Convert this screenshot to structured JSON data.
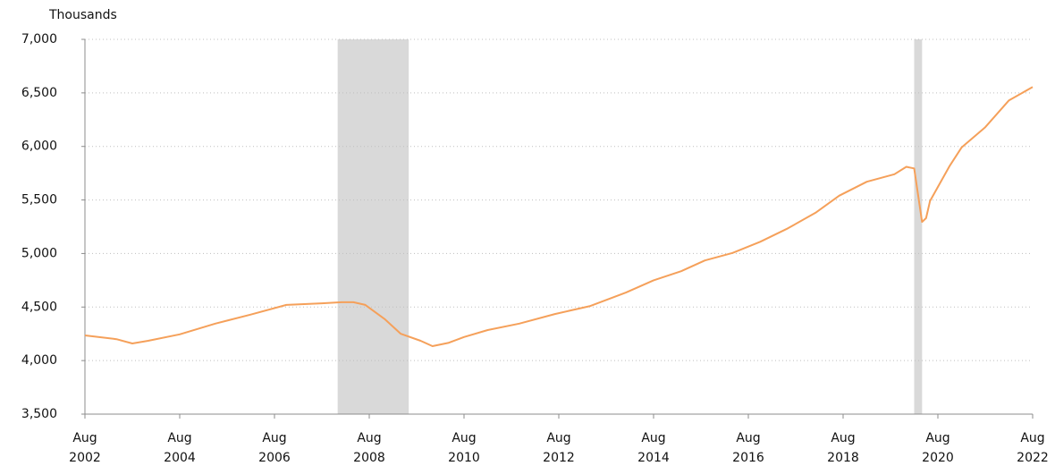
{
  "chart_data": {
    "type": "line",
    "y_axis_label": "Thousands",
    "xlim": [
      "2002-08",
      "2022-08"
    ],
    "xticks": [
      {
        "value": "2002-08",
        "label": [
          "Aug",
          "2002"
        ]
      },
      {
        "value": "2004-08",
        "label": [
          "Aug",
          "2004"
        ]
      },
      {
        "value": "2006-08",
        "label": [
          "Aug",
          "2006"
        ]
      },
      {
        "value": "2008-08",
        "label": [
          "Aug",
          "2008"
        ]
      },
      {
        "value": "2010-08",
        "label": [
          "Aug",
          "2010"
        ]
      },
      {
        "value": "2012-08",
        "label": [
          "Aug",
          "2012"
        ]
      },
      {
        "value": "2014-08",
        "label": [
          "Aug",
          "2014"
        ]
      },
      {
        "value": "2016-08",
        "label": [
          "Aug",
          "2016"
        ]
      },
      {
        "value": "2018-08",
        "label": [
          "Aug",
          "2018"
        ]
      },
      {
        "value": "2020-08",
        "label": [
          "Aug",
          "2020"
        ]
      },
      {
        "value": "2022-08",
        "label": [
          "Aug",
          "2022"
        ]
      }
    ],
    "ylim": [
      3500,
      7000
    ],
    "yticks": [
      {
        "value": 3500,
        "label": "3,500"
      },
      {
        "value": 4000,
        "label": "4,000"
      },
      {
        "value": 4500,
        "label": "4,500"
      },
      {
        "value": 5000,
        "label": "5,000"
      },
      {
        "value": 5500,
        "label": "5,500"
      },
      {
        "value": 6000,
        "label": "6,000"
      },
      {
        "value": 6500,
        "label": "6,500"
      },
      {
        "value": 7000,
        "label": "7,000"
      }
    ],
    "grid": true,
    "shaded_periods": [
      {
        "start": "2007-12",
        "end": "2009-06",
        "color": "#d9d9d9"
      },
      {
        "start": "2020-02",
        "end": "2020-04",
        "color": "#d9d9d9"
      }
    ],
    "x": [
      "2002-08",
      "2003-04",
      "2003-08",
      "2003-12",
      "2004-08",
      "2005-05",
      "2006-02",
      "2006-11",
      "2007-08",
      "2008-01",
      "2008-04",
      "2008-07",
      "2008-12",
      "2009-04",
      "2009-09",
      "2009-12",
      "2010-04",
      "2010-08",
      "2011-02",
      "2011-10",
      "2012-07",
      "2013-04",
      "2014-01",
      "2014-08",
      "2015-03",
      "2015-09",
      "2016-04",
      "2016-11",
      "2017-06",
      "2018-01",
      "2018-07",
      "2019-02",
      "2019-09",
      "2019-12",
      "2020-02",
      "2020-04",
      "2020-05",
      "2020-06",
      "2020-11",
      "2021-02",
      "2021-08",
      "2022-02",
      "2022-08"
    ],
    "series": [
      {
        "color": "#f5a05a",
        "values": [
          4235,
          4200,
          4160,
          4185,
          4245,
          4345,
          4430,
          4520,
          4535,
          4545,
          4545,
          4520,
          4385,
          4250,
          4185,
          4135,
          4165,
          4220,
          4285,
          4345,
          4435,
          4510,
          4635,
          4750,
          4835,
          4935,
          5005,
          5110,
          5235,
          5380,
          5540,
          5670,
          5740,
          5810,
          5795,
          5295,
          5330,
          5490,
          5820,
          5990,
          6180,
          6430,
          6555
        ]
      }
    ]
  }
}
